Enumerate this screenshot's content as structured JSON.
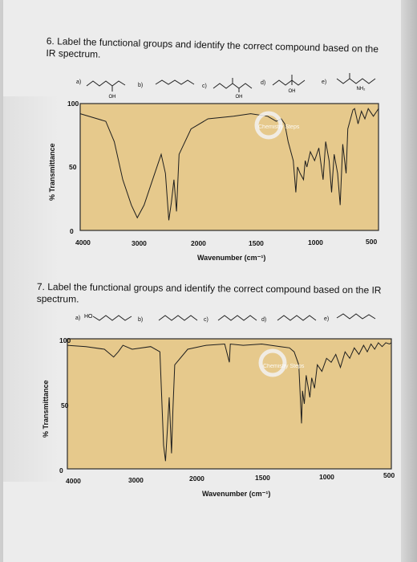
{
  "questions": [
    {
      "text": "6. Label the functional groups and identify the correct compound based on the IR spectrum.",
      "options": [
        "a)",
        "b)",
        "c)",
        "d)",
        "e)"
      ],
      "structure_labels": [
        "OH",
        "OH",
        "OH",
        "NH₂"
      ],
      "watermark": "Chemistry Steps",
      "chart_data": {
        "type": "line",
        "xlabel": "Wavenumber (cm⁻¹)",
        "ylabel": "% Transmittance",
        "x_ticks": [
          "4000",
          "3000",
          "2000",
          "1500",
          "1000",
          "500"
        ],
        "y_ticks": [
          "100",
          "50",
          "0"
        ],
        "xlim": [
          4000,
          500
        ],
        "ylim": [
          0,
          100
        ],
        "grid": false,
        "series": [
          {
            "points": [
              [
                4000,
                92
              ],
              [
                3700,
                86
              ],
              [
                3600,
                70
              ],
              [
                3500,
                40
              ],
              [
                3400,
                20
              ],
              [
                3330,
                10
              ],
              [
                3250,
                20
              ],
              [
                3150,
                40
              ],
              [
                3050,
                60
              ],
              [
                3000,
                45
              ],
              [
                2960,
                8
              ],
              [
                2930,
                22
              ],
              [
                2900,
                40
              ],
              [
                2870,
                15
              ],
              [
                2840,
                60
              ],
              [
                2700,
                80
              ],
              [
                2500,
                88
              ],
              [
                2200,
                90
              ],
              [
                2000,
                92
              ],
              [
                1800,
                90
              ],
              [
                1700,
                86
              ],
              [
                1640,
                88
              ],
              [
                1600,
                84
              ],
              [
                1560,
                70
              ],
              [
                1500,
                55
              ],
              [
                1470,
                30
              ],
              [
                1450,
                50
              ],
              [
                1420,
                45
              ],
              [
                1380,
                40
              ],
              [
                1360,
                55
              ],
              [
                1340,
                50
              ],
              [
                1300,
                62
              ],
              [
                1250,
                55
              ],
              [
                1200,
                65
              ],
              [
                1150,
                40
              ],
              [
                1120,
                70
              ],
              [
                1080,
                55
              ],
              [
                1050,
                30
              ],
              [
                1020,
                60
              ],
              [
                980,
                45
              ],
              [
                950,
                20
              ],
              [
                920,
                68
              ],
              [
                880,
                45
              ],
              [
                860,
                80
              ],
              [
                820,
                90
              ],
              [
                800,
                95
              ],
              [
                780,
                96
              ],
              [
                740,
                84
              ],
              [
                700,
                94
              ],
              [
                660,
                88
              ],
              [
                620,
                96
              ],
              [
                560,
                90
              ],
              [
                520,
                94
              ],
              [
                500,
                96
              ]
            ]
          }
        ]
      }
    },
    {
      "text": "7. Label the functional groups and identify the correct compound based on the IR spectrum.",
      "options": [
        "a)",
        "b)",
        "c)",
        "d)",
        "e)"
      ],
      "structure_labels": [
        "HO"
      ],
      "watermark": "Chemistry Steps",
      "chart_data": {
        "type": "line",
        "xlabel": "Wavenumber (cm⁻¹)",
        "ylabel": "% Transmittance",
        "x_ticks": [
          "4000",
          "3000",
          "2000",
          "1500",
          "1000",
          "500"
        ],
        "y_ticks": [
          "100",
          "50",
          "0"
        ],
        "xlim": [
          4000,
          500
        ],
        "ylim": [
          0,
          100
        ],
        "grid": false,
        "series": [
          {
            "points": [
              [
                4000,
                95
              ],
              [
                3800,
                94
              ],
              [
                3600,
                92
              ],
              [
                3500,
                86
              ],
              [
                3450,
                90
              ],
              [
                3400,
                95
              ],
              [
                3300,
                92
              ],
              [
                3100,
                94
              ],
              [
                3000,
                90
              ],
              [
                2960,
                18
              ],
              [
                2940,
                6
              ],
              [
                2920,
                30
              ],
              [
                2900,
                55
              ],
              [
                2875,
                12
              ],
              [
                2860,
                45
              ],
              [
                2840,
                80
              ],
              [
                2700,
                92
              ],
              [
                2500,
                95
              ],
              [
                2300,
                96
              ],
              [
                2250,
                82
              ],
              [
                2240,
                96
              ],
              [
                2100,
                95
              ],
              [
                1900,
                96
              ],
              [
                1700,
                94
              ],
              [
                1600,
                93
              ],
              [
                1550,
                90
              ],
              [
                1500,
                80
              ],
              [
                1470,
                35
              ],
              [
                1460,
                60
              ],
              [
                1440,
                50
              ],
              [
                1420,
                72
              ],
              [
                1380,
                55
              ],
              [
                1360,
                70
              ],
              [
                1330,
                62
              ],
              [
                1300,
                80
              ],
              [
                1250,
                75
              ],
              [
                1200,
                85
              ],
              [
                1150,
                82
              ],
              [
                1100,
                88
              ],
              [
                1050,
                78
              ],
              [
                1000,
                90
              ],
              [
                950,
                85
              ],
              [
                900,
                93
              ],
              [
                850,
                88
              ],
              [
                800,
                95
              ],
              [
                760,
                90
              ],
              [
                720,
                96
              ],
              [
                680,
                92
              ],
              [
                640,
                97
              ],
              [
                600,
                94
              ],
              [
                560,
                97
              ],
              [
                520,
                96
              ],
              [
                500,
                97
              ]
            ]
          }
        ]
      }
    }
  ]
}
